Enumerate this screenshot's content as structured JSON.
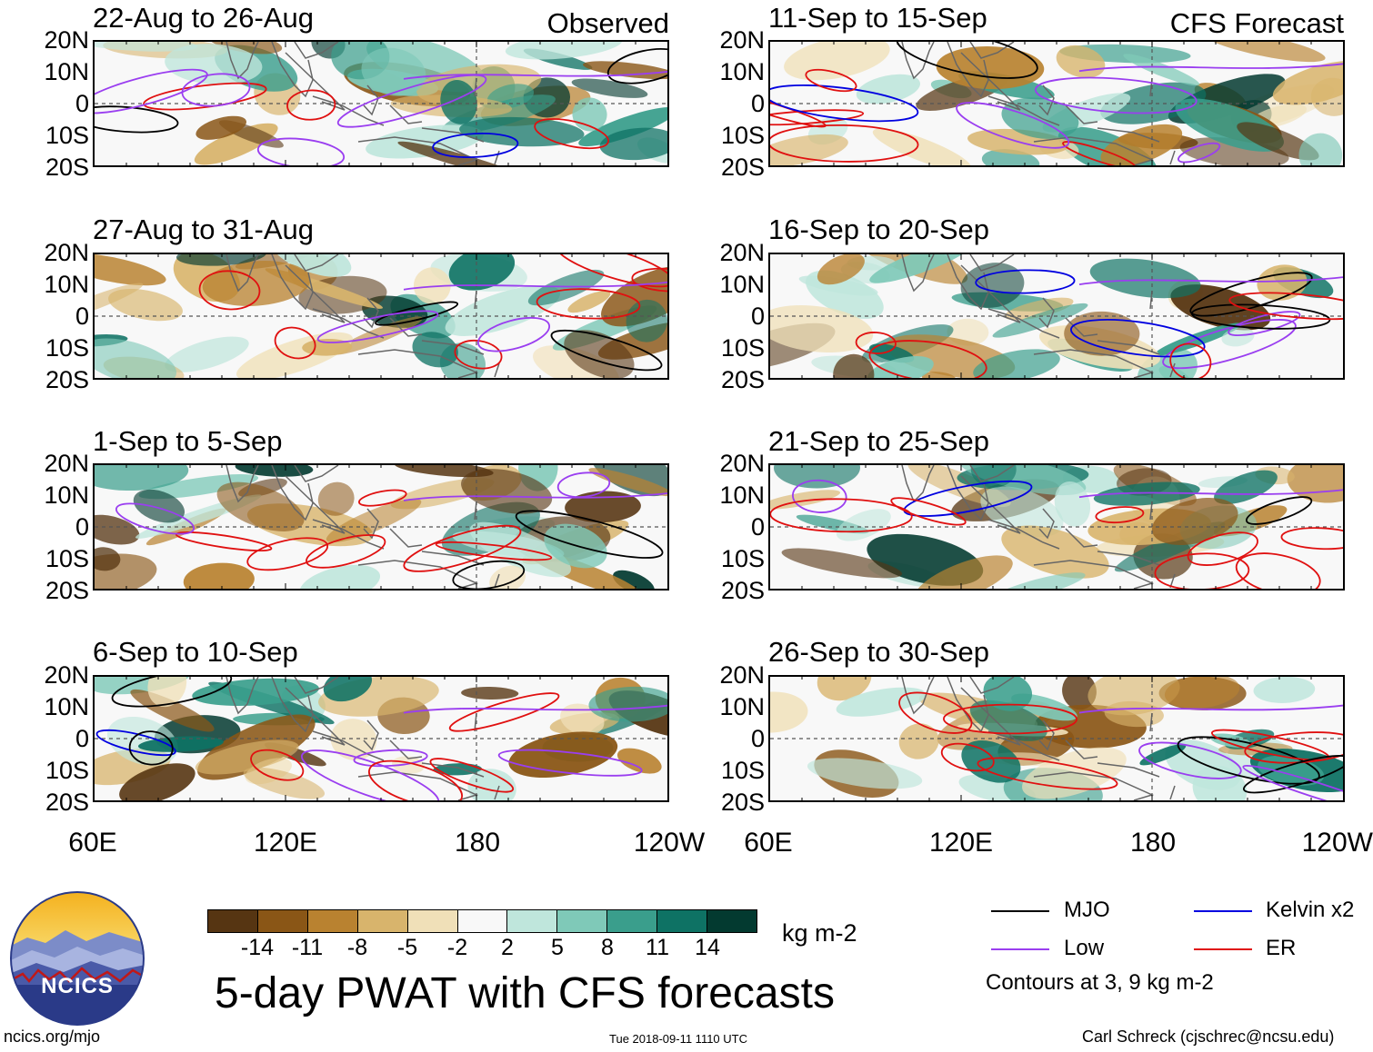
{
  "chart_data": {
    "type": "heatmap",
    "title": "5-day PWAT with CFS forecasts",
    "variable": "PWAT anomaly",
    "units": "kg m-2",
    "x_tick_labels": [
      "60E",
      "120E",
      "180",
      "120W"
    ],
    "x_range_deg_east": [
      60,
      240
    ],
    "y_tick_labels": [
      "20N",
      "10N",
      "0",
      "10S",
      "20S"
    ],
    "y_range_deg": [
      -20,
      20
    ],
    "columns": [
      "Observed",
      "CFS Forecast"
    ],
    "panels": [
      {
        "period": "22-Aug to 26-Aug",
        "source": "Observed",
        "tag": "Observed"
      },
      {
        "period": "27-Aug to 31-Aug",
        "source": "Observed",
        "tag": ""
      },
      {
        "period": "1-Sep to 5-Sep",
        "source": "Observed",
        "tag": ""
      },
      {
        "period": "6-Sep to 10-Sep",
        "source": "Observed",
        "tag": ""
      },
      {
        "period": "11-Sep to 15-Sep",
        "source": "CFS Forecast",
        "tag": "CFS Forecast"
      },
      {
        "period": "16-Sep to 20-Sep",
        "source": "CFS Forecast",
        "tag": ""
      },
      {
        "period": "21-Sep to 25-Sep",
        "source": "CFS Forecast",
        "tag": ""
      },
      {
        "period": "26-Sep to 30-Sep",
        "source": "CFS Forecast",
        "tag": ""
      }
    ],
    "colorbar": {
      "ticks": [
        "-14",
        "-11",
        "-8",
        "-5",
        "-2",
        "2",
        "5",
        "8",
        "11",
        "14"
      ],
      "colors": [
        "#563512",
        "#8a5616",
        "#b98230",
        "#d8b46c",
        "#f0e0b8",
        "#f8f8f8",
        "#bfe6dc",
        "#7fc9b8",
        "#3a9e8c",
        "#0e7264",
        "#033a30"
      ]
    },
    "contour_legend": [
      {
        "label": "MJO",
        "color": "#000000"
      },
      {
        "label": "Kelvin x2",
        "color": "#0000e0"
      },
      {
        "label": "Low",
        "color": "#9a3ef0"
      },
      {
        "label": "ER",
        "color": "#e01010"
      }
    ],
    "contour_note": "Contours at 3, 9 kg m-2"
  },
  "logo": {
    "text": "NCICS"
  },
  "footer": {
    "left": "ncics.org/mjo",
    "center": "Tue 2018-09-11 1110 UTC",
    "right": "Carl Schreck (cjschrec@ncsu.edu)"
  }
}
